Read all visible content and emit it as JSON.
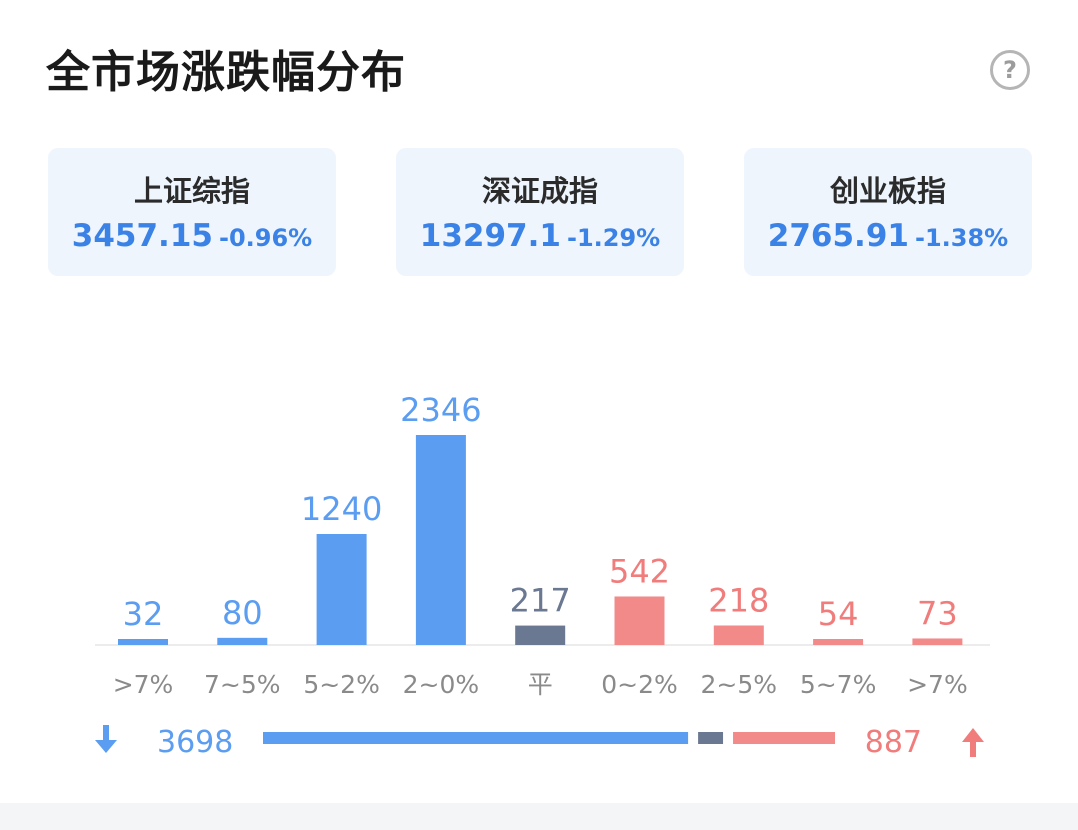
{
  "title": "全市场涨跌幅分布",
  "help_icon": "?",
  "indices": [
    {
      "name": "上证综指",
      "value": "3457.15",
      "change": "-0.96%"
    },
    {
      "name": "深证成指",
      "value": "13297.1",
      "change": "-1.29%"
    },
    {
      "name": "创业板指",
      "value": "2765.91",
      "change": "-1.38%"
    }
  ],
  "colors": {
    "down": "#5b9df0",
    "flat": "#6b7891",
    "up": "#f28a8a",
    "down_text": "#5b9df0",
    "up_text": "#f07c7c"
  },
  "chart_data": {
    "type": "bar",
    "categories": [
      ">7%",
      "7~5%",
      "5~2%",
      "2~0%",
      "平",
      "0~2%",
      "2~5%",
      "5~7%",
      ">7%"
    ],
    "values": [
      32,
      80,
      1240,
      2346,
      217,
      542,
      218,
      54,
      73
    ],
    "groups": [
      "down",
      "down",
      "down",
      "down",
      "flat",
      "up",
      "up",
      "up",
      "up"
    ],
    "ylim": [
      0,
      2346
    ]
  },
  "summary": {
    "down_total": "3698",
    "up_total": "887",
    "flat_total": 217
  }
}
